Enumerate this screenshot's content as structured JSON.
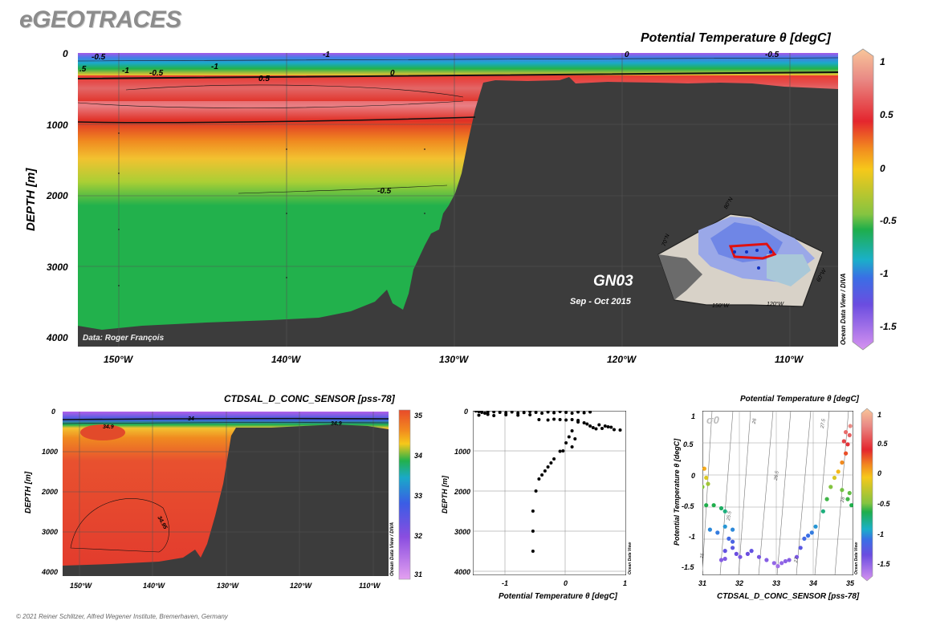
{
  "logo": "eGEOTRACES",
  "copyright": "© 2021 Reiner Schlitzer, Alfred Wegener Institute, Bremerhaven, Germany",
  "chart_data": [
    {
      "id": "main-section",
      "type": "heatmap",
      "title": "Potential Temperature θ [degC]",
      "ylabel": "DEPTH [m]",
      "x_ticks": [
        "150°W",
        "140°W",
        "130°W",
        "120°W",
        "110°W"
      ],
      "y_ticks": [
        "0",
        "1000",
        "2000",
        "3000",
        "4000"
      ],
      "xlim": [
        -152.5,
        -107.5
      ],
      "ylim": [
        4000,
        0
      ],
      "colorbar": {
        "ticks": [
          "1",
          "0.5",
          "0",
          "-0.5",
          "-1",
          "-1.5"
        ],
        "range": [
          -1.7,
          1.1
        ]
      },
      "contour_labels": [
        "-0.5",
        "-1",
        "-1",
        "-0.5",
        "0",
        "0.5",
        "-0.5",
        "0",
        "-0.5",
        "-1",
        "-0.5",
        ".5"
      ],
      "section_name": "GN03",
      "date_range": "Sep - Oct 2015",
      "credit": "Data: Roger François",
      "odv_label": "Ocean Data View / DIVA",
      "inset_map": {
        "labels": [
          "80°N",
          "70°N",
          "150°W",
          "120°W",
          "60°W"
        ]
      }
    },
    {
      "id": "salinity-section",
      "type": "heatmap",
      "title": "CTDSAL_D_CONC_SENSOR [pss-78]",
      "ylabel": "DEPTH [m]",
      "x_ticks": [
        "150°W",
        "140°W",
        "130°W",
        "120°W",
        "110°W"
      ],
      "y_ticks": [
        "0",
        "1000",
        "2000",
        "3000",
        "4000"
      ],
      "colorbar": {
        "ticks": [
          "35",
          "34",
          "33",
          "32",
          "31"
        ],
        "range": [
          31,
          35
        ]
      },
      "contour_labels": [
        "34.9",
        "34",
        "34.9",
        "34.95"
      ],
      "odv_label": "Ocean Data View / DIVA"
    },
    {
      "id": "profile-scatter",
      "type": "scatter",
      "xlabel": "Potential Temperature θ [degC]",
      "ylabel": "DEPTH [m]",
      "x_ticks": [
        "-1",
        "0",
        "1"
      ],
      "y_ticks": [
        "0",
        "1000",
        "2000",
        "3000",
        "4000"
      ],
      "xlim": [
        -1.55,
        1.0
      ],
      "ylim": [
        4100,
        0
      ],
      "odv_label": "Ocean Data View",
      "points": [
        [
          -1.5,
          5
        ],
        [
          -1.45,
          20
        ],
        [
          -1.4,
          40
        ],
        [
          -1.35,
          60
        ],
        [
          -1.3,
          30
        ],
        [
          -1.2,
          25
        ],
        [
          -1.1,
          40
        ],
        [
          -1.0,
          50
        ],
        [
          -0.9,
          30
        ],
        [
          -0.8,
          55
        ],
        [
          -0.7,
          45
        ],
        [
          -0.6,
          20
        ],
        [
          -0.5,
          40
        ],
        [
          -0.4,
          60
        ],
        [
          -0.3,
          30
        ],
        [
          -0.2,
          50
        ],
        [
          -0.1,
          20
        ],
        [
          0.0,
          40
        ],
        [
          0.1,
          60
        ],
        [
          0.2,
          30
        ],
        [
          0.3,
          50
        ],
        [
          0.4,
          30
        ],
        [
          -1.45,
          110
        ],
        [
          -1.3,
          90
        ],
        [
          -1.2,
          120
        ],
        [
          -1.0,
          100
        ],
        [
          -0.8,
          110
        ],
        [
          -0.6,
          100
        ],
        [
          -0.45,
          220
        ],
        [
          -0.3,
          230
        ],
        [
          -0.2,
          210
        ],
        [
          -0.1,
          220
        ],
        [
          0.0,
          230
        ],
        [
          0.1,
          220
        ],
        [
          0.2,
          240
        ],
        [
          0.2,
          280
        ],
        [
          0.3,
          300
        ],
        [
          0.35,
          330
        ],
        [
          0.4,
          380
        ],
        [
          0.45,
          420
        ],
        [
          0.5,
          450
        ],
        [
          0.6,
          440
        ],
        [
          0.7,
          400
        ],
        [
          0.8,
          470
        ],
        [
          0.9,
          480
        ],
        [
          0.55,
          350
        ],
        [
          0.65,
          380
        ],
        [
          0.75,
          410
        ],
        [
          0.1,
          500
        ],
        [
          0.05,
          650
        ],
        [
          0.0,
          800
        ],
        [
          -0.05,
          1000
        ],
        [
          -0.1,
          1010
        ],
        [
          0.1,
          900
        ],
        [
          0.15,
          700
        ],
        [
          -0.2,
          1200
        ],
        [
          -0.25,
          1300
        ],
        [
          -0.3,
          1400
        ],
        [
          -0.35,
          1500
        ],
        [
          -0.4,
          1600
        ],
        [
          -0.45,
          1700
        ],
        [
          -0.5,
          2000
        ],
        [
          -0.55,
          2500
        ],
        [
          -0.55,
          3000
        ],
        [
          -0.55,
          3500
        ]
      ]
    },
    {
      "id": "ts-diagram",
      "type": "scatter",
      "title": "Potential Temperature θ [degC]",
      "xlabel": "CTDSAL_D_CONC_SENSOR [pss-78]",
      "ylabel": "Potential Temperature θ [degC]",
      "x_ticks": [
        "31",
        "32",
        "33",
        "34",
        "35"
      ],
      "y_ticks": [
        "1",
        "0.5",
        "0",
        "-0.5",
        "-1",
        "-1.5"
      ],
      "xlim": [
        31,
        35
      ],
      "ylim": [
        -1.65,
        1.05
      ],
      "sigma_label": "σ0",
      "isopycnal_labels": [
        "25",
        "25.5",
        "26",
        "26.5",
        "27",
        "27.5",
        "28"
      ],
      "colorbar": {
        "ticks": [
          "1",
          "0.5",
          "0",
          "-0.5",
          "-1",
          "-1.5"
        ],
        "range": [
          -1.7,
          1.1
        ]
      },
      "odv_label": "Ocean Data View",
      "points": [
        [
          31.05,
          0.1
        ],
        [
          31.1,
          -0.05
        ],
        [
          31.0,
          -0.2
        ],
        [
          31.15,
          -0.15
        ],
        [
          31.1,
          -0.5
        ],
        [
          31.3,
          -0.5
        ],
        [
          31.5,
          -0.55
        ],
        [
          31.6,
          -0.6
        ],
        [
          31.2,
          -0.9
        ],
        [
          31.4,
          -0.95
        ],
        [
          31.6,
          -0.85
        ],
        [
          31.8,
          -0.9
        ],
        [
          31.7,
          -1.05
        ],
        [
          31.8,
          -1.1
        ],
        [
          31.6,
          -1.25
        ],
        [
          31.8,
          -1.2
        ],
        [
          31.5,
          -1.4
        ],
        [
          31.6,
          -1.38
        ],
        [
          31.9,
          -1.3
        ],
        [
          32.0,
          -1.35
        ],
        [
          32.2,
          -1.3
        ],
        [
          32.3,
          -1.25
        ],
        [
          32.5,
          -1.35
        ],
        [
          32.7,
          -1.4
        ],
        [
          32.9,
          -1.45
        ],
        [
          33.0,
          -1.5
        ],
        [
          33.1,
          -1.45
        ],
        [
          33.2,
          -1.42
        ],
        [
          33.3,
          -1.4
        ],
        [
          33.5,
          -1.35
        ],
        [
          33.6,
          -1.2
        ],
        [
          33.7,
          -1.05
        ],
        [
          33.8,
          -1.0
        ],
        [
          33.9,
          -0.95
        ],
        [
          34.0,
          -0.85
        ],
        [
          34.2,
          -0.6
        ],
        [
          34.3,
          -0.4
        ],
        [
          34.4,
          -0.2
        ],
        [
          34.5,
          -0.05
        ],
        [
          34.6,
          0.05
        ],
        [
          34.7,
          0.2
        ],
        [
          34.8,
          0.35
        ],
        [
          34.85,
          0.5
        ],
        [
          34.9,
          0.65
        ],
        [
          34.92,
          0.8
        ],
        [
          34.8,
          0.7
        ],
        [
          34.75,
          0.55
        ],
        [
          34.9,
          -0.3
        ],
        [
          34.95,
          -0.5
        ],
        [
          34.85,
          -0.4
        ],
        [
          34.7,
          -0.25
        ]
      ]
    }
  ]
}
